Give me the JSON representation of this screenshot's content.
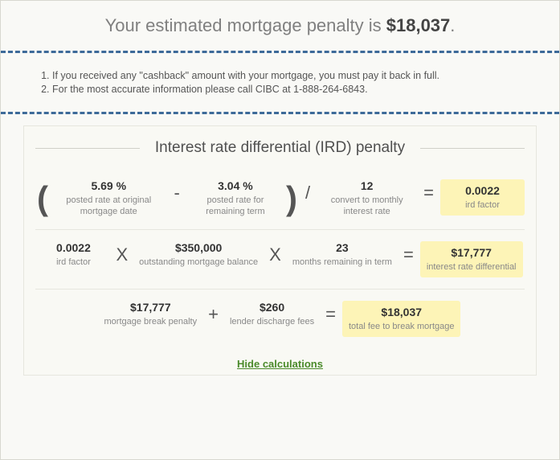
{
  "colors": {
    "dash_border": "#3d6a99",
    "background": "#f9f9f6",
    "highlight": "#fdf4b7",
    "muted_text": "#808080",
    "strong_text": "#444444",
    "label_text": "#888888",
    "link": "#4a8a2a",
    "divider": "#e6e6de"
  },
  "headline": {
    "prefix": "Your estimated mortgage penalty is ",
    "amount": "$18,037",
    "suffix": "."
  },
  "notes": [
    "If you received any \"cashback\" amount with your mortgage, you must pay it back in full.",
    "For the most accurate information please call CIBC at 1-888-264-6843."
  ],
  "calc_title": "Interest rate differential (IRD) penalty",
  "rows": [
    {
      "type": "ird_factor",
      "items": [
        {
          "kind": "paren",
          "text": "("
        },
        {
          "kind": "cell",
          "val": "5.69 %",
          "lbl": "posted rate at original mortgage date"
        },
        {
          "kind": "op",
          "text": "-"
        },
        {
          "kind": "cell",
          "val": "3.04 %",
          "lbl": "posted rate for remaining term"
        },
        {
          "kind": "paren",
          "text": ")"
        },
        {
          "kind": "op",
          "text": "/"
        },
        {
          "kind": "cell",
          "val": "12",
          "lbl": "convert to monthly interest rate"
        },
        {
          "kind": "op",
          "text": "="
        },
        {
          "kind": "cell",
          "hl": true,
          "val": "0.0022",
          "lbl": "ird factor"
        }
      ]
    },
    {
      "type": "ird",
      "items": [
        {
          "kind": "cell",
          "val": "0.0022",
          "lbl": "ird factor"
        },
        {
          "kind": "op",
          "text": "X"
        },
        {
          "kind": "cell",
          "val": "$350,000",
          "lbl": "outstanding mortgage balance"
        },
        {
          "kind": "op",
          "text": "X"
        },
        {
          "kind": "cell",
          "val": "23",
          "lbl": "months remaining in term"
        },
        {
          "kind": "op",
          "text": "="
        },
        {
          "kind": "cell",
          "hl": true,
          "val": "$17,777",
          "lbl": "interest rate differential"
        }
      ]
    },
    {
      "type": "total",
      "items": [
        {
          "kind": "cell",
          "val": "$17,777",
          "lbl": "mortgage break penalty"
        },
        {
          "kind": "op",
          "text": "+"
        },
        {
          "kind": "cell",
          "val": "$260",
          "lbl": "lender discharge fees"
        },
        {
          "kind": "op",
          "text": "="
        },
        {
          "kind": "cell",
          "hl": true,
          "val": "$18,037",
          "lbl": "total fee to break mortgage"
        }
      ]
    }
  ],
  "hide_link": "Hide calculations"
}
